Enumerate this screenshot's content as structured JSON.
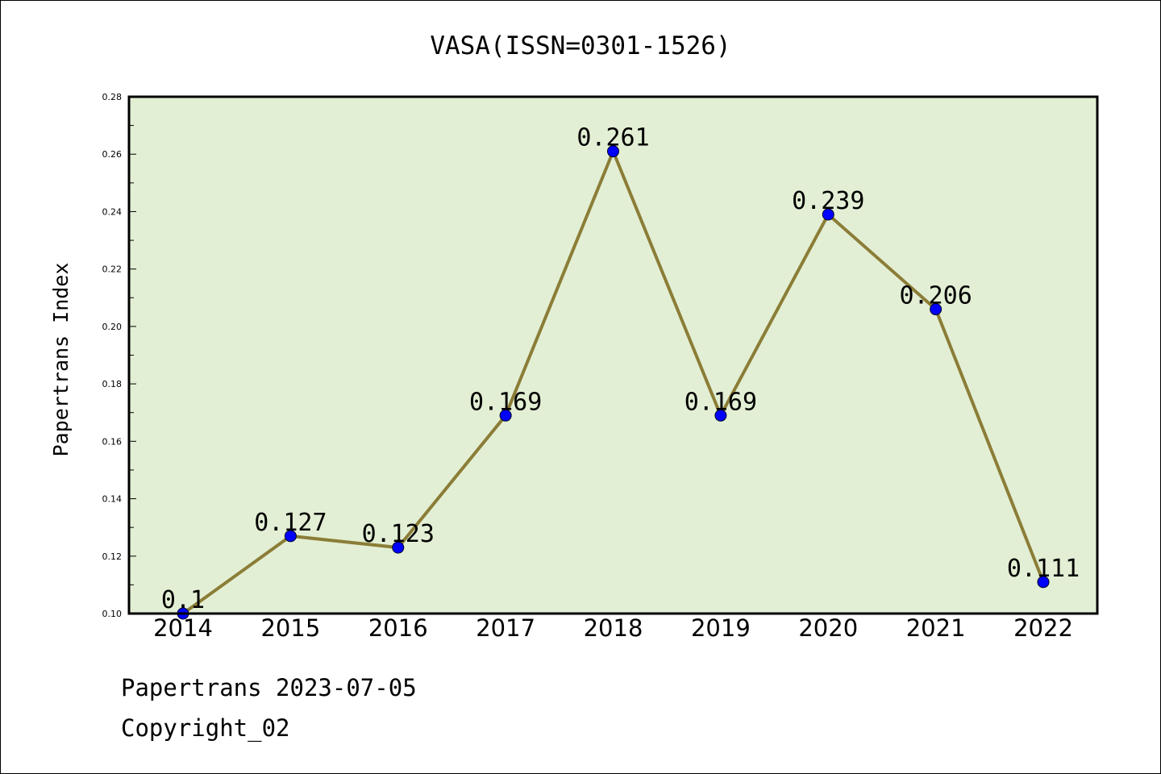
{
  "chart_data": {
    "type": "line",
    "title": "VASA(ISSN=0301-1526)",
    "ylabel": "Papertrans Index",
    "xlabel": "",
    "categories": [
      "2014",
      "2015",
      "2016",
      "2017",
      "2018",
      "2019",
      "2020",
      "2021",
      "2022"
    ],
    "series": [
      {
        "values": [
          0.1,
          0.127,
          0.123,
          0.169,
          0.261,
          0.169,
          0.239,
          0.206,
          0.111
        ],
        "labels": [
          "0.1",
          "0.127",
          "0.123",
          "0.169",
          "0.261",
          "0.169",
          "0.239",
          "0.206",
          "0.111"
        ]
      }
    ],
    "ylim": [
      0.1,
      0.28
    ],
    "yticks": [
      "0.10",
      "0.12",
      "0.14",
      "0.16",
      "0.18",
      "0.20",
      "0.22",
      "0.24",
      "0.26",
      "0.28"
    ],
    "grid": false,
    "legend": "none",
    "colors": {
      "plot_background": "#e2efd4",
      "line": "#8b7d37",
      "marker": "#0000ff"
    }
  },
  "footer": {
    "date_line": "Papertrans 2023-07-05",
    "copyright": "Copyright_02"
  }
}
